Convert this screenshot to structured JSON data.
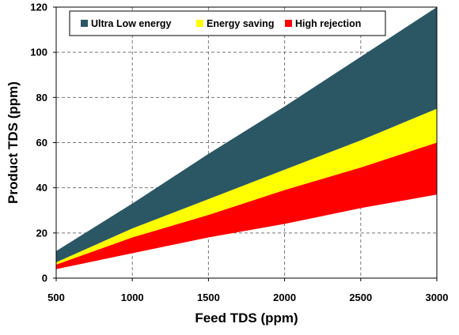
{
  "chart_data": {
    "type": "area",
    "xlabel": "Feed TDS (ppm)",
    "ylabel": "Product TDS (ppm)",
    "xlim": [
      500,
      3000
    ],
    "ylim": [
      0,
      120
    ],
    "x_ticks": [
      500,
      1000,
      1500,
      2000,
      2500,
      3000
    ],
    "y_ticks": [
      0,
      20,
      40,
      60,
      80,
      100,
      120
    ],
    "grid": true,
    "legend_position": "top",
    "x": [
      500,
      1000,
      1500,
      2000,
      2500,
      3000
    ],
    "series": [
      {
        "name": "High rejection",
        "color": "#ff0000",
        "lower": [
          4,
          11,
          18,
          24,
          31,
          37
        ],
        "upper": [
          6,
          18,
          28,
          39,
          49,
          60
        ]
      },
      {
        "name": "Energy saving",
        "color": "#ffff00",
        "lower": [
          6,
          18,
          28,
          39,
          49,
          60
        ],
        "upper": [
          7,
          22,
          35,
          48,
          61,
          75
        ]
      },
      {
        "name": "Ultra Low energy",
        "color": "#2b5764",
        "lower": [
          7,
          22,
          35,
          48,
          61,
          75
        ],
        "upper": [
          12,
          33,
          55,
          76,
          98,
          120
        ]
      }
    ],
    "legend_order": [
      "Ultra Low energy",
      "Energy saving",
      "High rejection"
    ]
  }
}
